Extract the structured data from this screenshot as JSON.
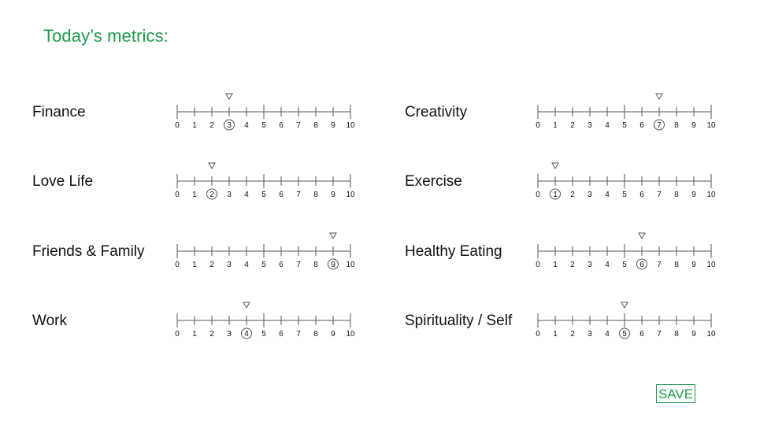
{
  "page": {
    "title": "Today’s metrics:"
  },
  "scale_labels": [
    "0",
    "1",
    "2",
    "3",
    "4",
    "5",
    "6",
    "7",
    "8",
    "9",
    "10"
  ],
  "metrics": [
    {
      "label": "Finance",
      "value": 3
    },
    {
      "label": "Love Life",
      "value": 2
    },
    {
      "label": "Friends & Family",
      "value": 9
    },
    {
      "label": "Work",
      "value": 4
    },
    {
      "label": "Creativity",
      "value": 7
    },
    {
      "label": "Exercise",
      "value": 1
    },
    {
      "label": "Healthy Eating",
      "value": 6
    },
    {
      "label": "Spirituality / Self",
      "value": 5
    }
  ],
  "save_button": {
    "label": "SAVE"
  },
  "colors": {
    "accent": "#1f9a4f",
    "text": "#111111",
    "scale_line": "#555555"
  },
  "icons": {
    "marker": "down-triangle-icon",
    "selection": "circle-outline"
  }
}
